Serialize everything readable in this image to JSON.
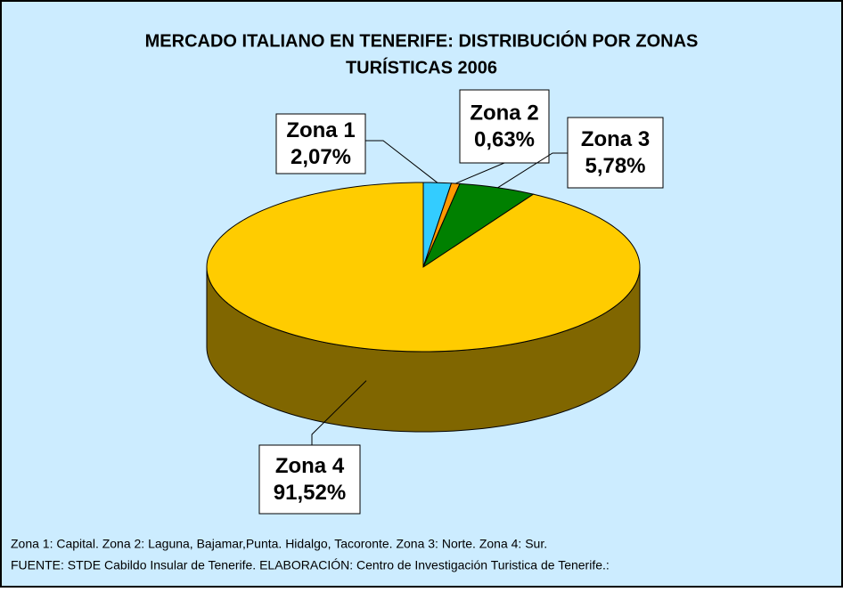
{
  "chart_data": {
    "type": "pie3d",
    "title_lines": [
      "MERCADO ITALIANO EN TENERIFE: DISTRIBUCIÓN POR ZONAS",
      "TURÍSTICAS  2006"
    ],
    "categories": [
      "Zona 1",
      "Zona 2",
      "Zona 3",
      "Zona 4"
    ],
    "values": [
      2.07,
      0.63,
      5.78,
      91.52
    ],
    "value_labels": [
      "2,07%",
      "0,63%",
      "5,78%",
      "91,52%"
    ],
    "colors": [
      "#33ccff",
      "#ff9900",
      "#008000",
      "#ffcc00"
    ],
    "notes": [
      "Zona 1: Capital. Zona 2: Laguna, Bajamar,Punta. Hidalgo, Tacoronte. Zona 3: Norte. Zona 4: Sur.",
      "FUENTE: STDE Cabildo Insular de Tenerife. ELABORACIÓN: Centro de Investigación Turistica de Tenerife.:"
    ]
  }
}
